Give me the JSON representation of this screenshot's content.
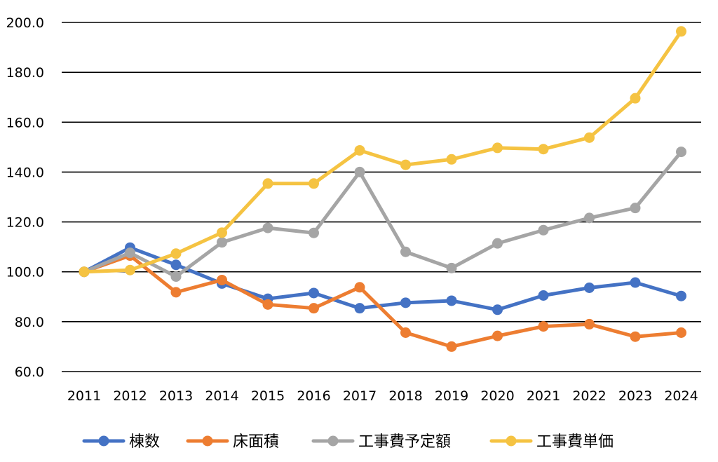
{
  "chart_data": {
    "type": "line",
    "categories": [
      "2011",
      "2012",
      "2013",
      "2014",
      "2015",
      "2016",
      "2017",
      "2018",
      "2019",
      "2020",
      "2021",
      "2022",
      "2023",
      "2024"
    ],
    "ylim": [
      60,
      200
    ],
    "yticks": [
      "60.0",
      "80.0",
      "100.0",
      "120.0",
      "140.0",
      "160.0",
      "180.0",
      "200.0"
    ],
    "grid": true,
    "legend_position": "bottom",
    "series": [
      {
        "name": "棟数",
        "color": "#4472C4",
        "values": [
          100.0,
          109.7,
          102.8,
          95.3,
          89.2,
          91.5,
          85.4,
          87.6,
          88.4,
          84.8,
          90.5,
          93.6,
          95.7,
          90.3
        ]
      },
      {
        "name": "床面積",
        "color": "#ED7D31",
        "values": [
          100.0,
          106.5,
          91.8,
          96.7,
          86.9,
          85.4,
          93.8,
          75.6,
          70.0,
          74.3,
          78.1,
          79.0,
          74.0,
          75.6
        ]
      },
      {
        "name": "工事費予定額",
        "color": "#A5A5A5",
        "values": [
          100.0,
          107.6,
          98.1,
          111.8,
          117.6,
          115.6,
          140.0,
          108.0,
          101.5,
          111.4,
          116.7,
          121.6,
          125.6,
          148.1
        ]
      },
      {
        "name": "工事費単価",
        "color": "#F5C342",
        "values": [
          100.0,
          100.7,
          107.3,
          115.7,
          135.4,
          135.4,
          148.7,
          142.9,
          145.1,
          149.7,
          149.2,
          153.8,
          169.6,
          196.4
        ]
      }
    ]
  }
}
